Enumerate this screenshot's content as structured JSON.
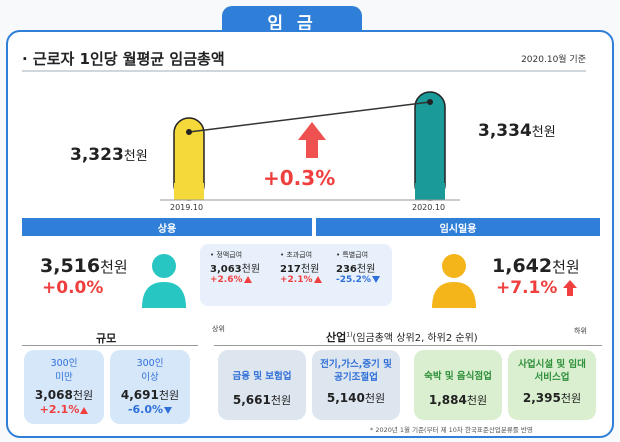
{
  "title": "임 금",
  "section": {
    "label": "· 근로자 1인당 월평균 임금총액",
    "basis": "2020.10월 기준"
  },
  "comparison": {
    "prev": {
      "value": "3,323",
      "unit": "천원",
      "period": "2019.10"
    },
    "curr": {
      "value": "3,334",
      "unit": "천원",
      "period": "2020.10"
    },
    "change": "+0.3%"
  },
  "regular": {
    "label": "상용",
    "total": {
      "value": "3,516",
      "unit": "천원",
      "change": "+0.0%"
    },
    "items": [
      {
        "label": "• 정액급여",
        "value": "3,063",
        "unit": "천원",
        "change": "+2.6%",
        "dir": "up"
      },
      {
        "label": "• 초과급여",
        "value": "217",
        "unit": "천원",
        "change": "+2.1%",
        "dir": "up"
      },
      {
        "label": "• 특별급여",
        "value": "236",
        "unit": "천원",
        "change": "-25.2%",
        "dir": "down"
      }
    ]
  },
  "temporary": {
    "label": "임시일용",
    "value": "1,642",
    "unit": "천원",
    "change": "+7.1%"
  },
  "scale": {
    "label": "규모",
    "items": [
      {
        "label1": "300인",
        "label2": "미만",
        "value": "3,068",
        "unit": "천원",
        "change": "+2.1%",
        "dir": "up"
      },
      {
        "label1": "300인",
        "label2": "이상",
        "value": "4,691",
        "unit": "천원",
        "change": "-6.0%",
        "dir": "down"
      }
    ]
  },
  "industry": {
    "label": "산업",
    "sup": "1)",
    "note": "(임금총액 상위2, 하위2 순위)",
    "top_label": "상위",
    "bottom_label": "하위",
    "items": [
      {
        "label": "금융 및 보험업",
        "value": "5,661",
        "unit": "천원"
      },
      {
        "label": "전기,가스,증기 및 공기조절업",
        "value": "5,140",
        "unit": "천원"
      },
      {
        "label": "숙박 및 음식점업",
        "value": "1,884",
        "unit": "천원"
      },
      {
        "label": "사업시설 및 임대서비스업",
        "value": "2,395",
        "unit": "천원"
      }
    ]
  },
  "footnote": "* 2020년 1월 기준(부터 제 10차 한국표준산업분류를 반영",
  "colors": {
    "accent": "#2f7fd8",
    "yellow": "#f5d93a",
    "teal": "#1a9a98",
    "red": "#ef3f3f",
    "blue": "#2f6fd8"
  }
}
